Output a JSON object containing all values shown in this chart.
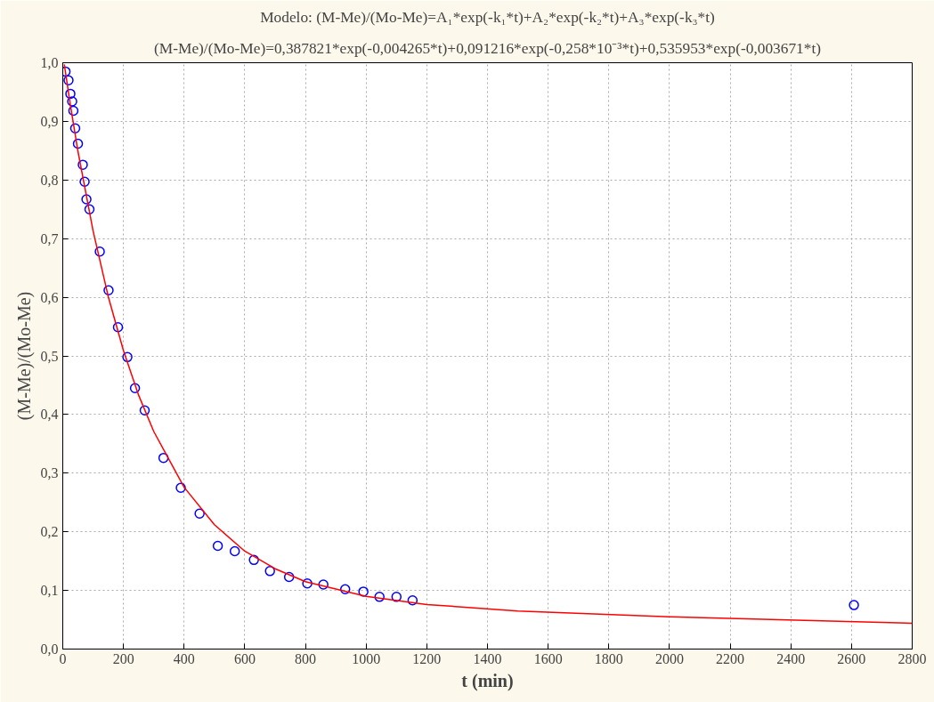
{
  "chart_data": {
    "type": "scatter",
    "title": "Modelo: (M-Me)/(Mo-Me)=A₁*exp(-k₁*t)+A₂*exp(-k₂*t)+A₃*exp(-k₃*t)",
    "subtitle": "(M-Me)/(Mo-Me)=0,387821*exp(-0,004265*t)+0,091216*exp(-0,258*10⁻³*t)+0,535953*exp(-0,003671*t)",
    "xlabel": "t (min)",
    "ylabel": "(M-Me)/(Mo-Me)",
    "series": [
      {
        "color": "#0000ff",
        "marker": "circle",
        "x": [
          9,
          19,
          25,
          31,
          35,
          41,
          50,
          66,
          72,
          78,
          88,
          122,
          151,
          182,
          213,
          238,
          270,
          332,
          389,
          451,
          511,
          567,
          630,
          683,
          746,
          806,
          859,
          931,
          991,
          1044,
          1100,
          1153,
          2608
        ],
        "values": [
          0.985,
          0.97,
          0.947,
          0.934,
          0.918,
          0.888,
          0.862,
          0.826,
          0.797,
          0.767,
          0.75,
          0.678,
          0.612,
          0.549,
          0.498,
          0.445,
          0.407,
          0.326,
          0.275,
          0.231,
          0.176,
          0.167,
          0.152,
          0.133,
          0.123,
          0.112,
          0.11,
          0.102,
          0.098,
          0.089,
          0.089,
          0.083,
          0.075
        ]
      },
      {
        "type": "line",
        "color": "#ff0000",
        "marker": "none",
        "line_style": "solid",
        "x": [
          5,
          25,
          50,
          100,
          150,
          200,
          250,
          300,
          400,
          500,
          600,
          700,
          800,
          1000,
          1200,
          1500,
          2000,
          2500,
          2800
        ],
        "values": [
          0.997,
          0.928,
          0.849,
          0.713,
          0.601,
          0.509,
          0.433,
          0.371,
          0.276,
          0.212,
          0.167,
          0.137,
          0.115,
          0.09,
          0.076,
          0.065,
          0.055,
          0.048,
          0.044
        ]
      }
    ],
    "xlim": [
      0,
      2800
    ],
    "ylim": [
      0,
      1
    ],
    "xticks": [
      0,
      200,
      400,
      600,
      800,
      1000,
      1200,
      1400,
      1600,
      1800,
      2000,
      2200,
      2400,
      2600,
      2800
    ],
    "yticks": [
      {
        "value": 0,
        "label": "0,0"
      },
      {
        "value": 0.1,
        "label": "0,1"
      },
      {
        "value": 0.2,
        "label": "0,2"
      },
      {
        "value": 0.3,
        "label": "0,3"
      },
      {
        "value": 0.4,
        "label": "0,4"
      },
      {
        "value": 0.5,
        "label": "0,5"
      },
      {
        "value": 0.6,
        "label": "0,6"
      },
      {
        "value": 0.7,
        "label": "0,7"
      },
      {
        "value": 0.8,
        "label": "0,8"
      },
      {
        "value": 0.9,
        "label": "0,9"
      },
      {
        "value": 1,
        "label": "1,0"
      }
    ],
    "grid": true
  }
}
